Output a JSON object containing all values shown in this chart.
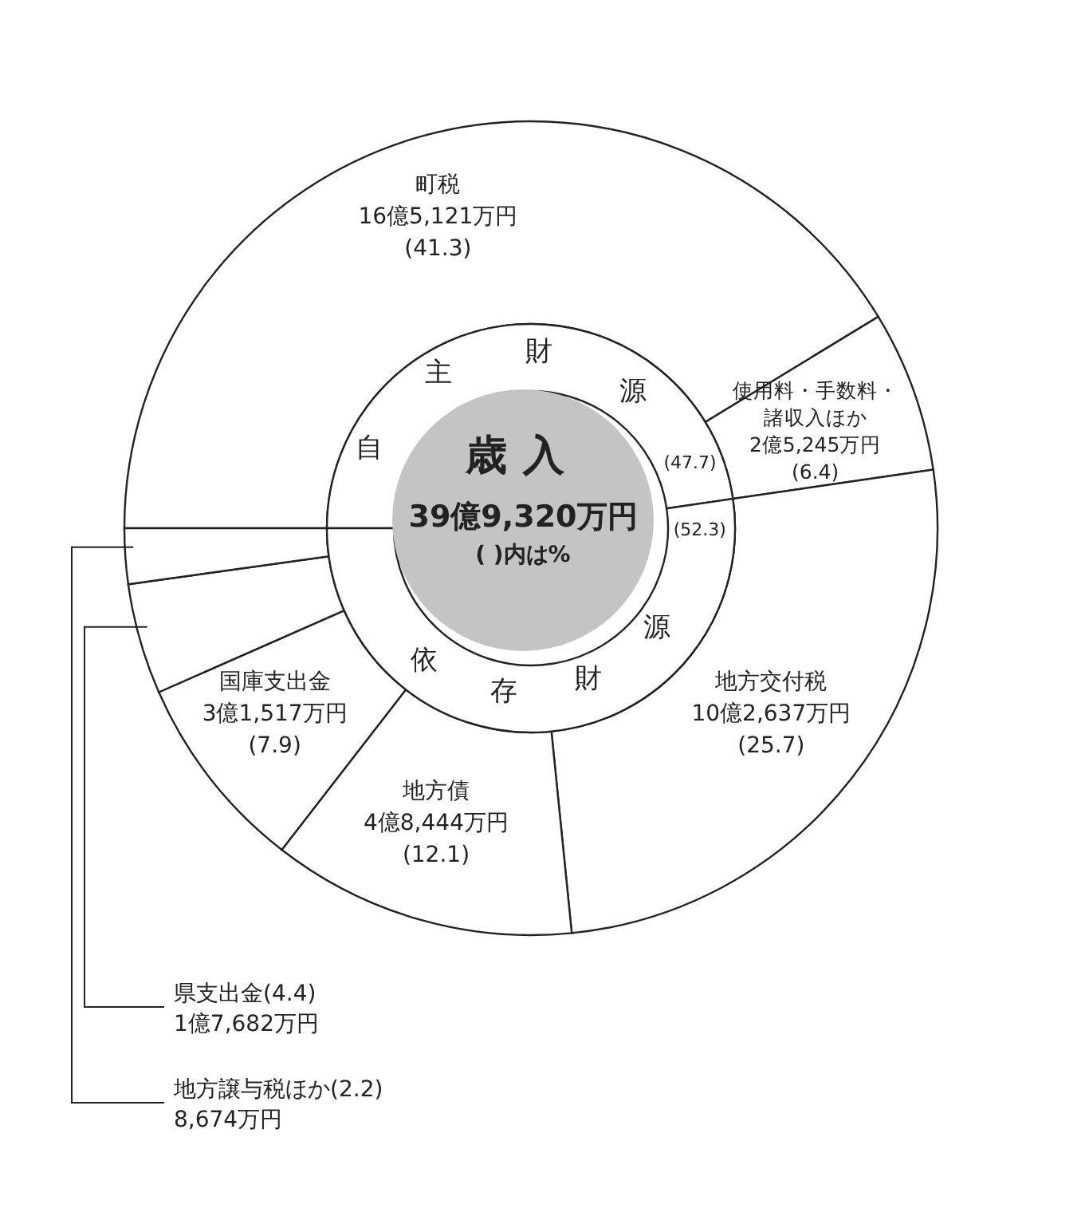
{
  "chart_data": [
    {
      "type": "donut",
      "categories": [
        "町税",
        "使用料・手数料・諸収入ほか",
        "地方交付税",
        "地方債",
        "国庫支出金",
        "県支出金",
        "地方譲与税ほか"
      ],
      "values": [
        41.3,
        6.4,
        25.7,
        12.1,
        7.9,
        4.4,
        2.2
      ],
      "value_labels": [
        "(41.3)",
        "(6.4)",
        "(25.7)",
        "(12.1)",
        "(7.9)",
        "(4.4)",
        "(2.2)"
      ],
      "colors": [
        "#ffffff",
        "#ffffff",
        "#ffffff",
        "#ffffff",
        "#ffffff",
        "#ffffff",
        "#ffffff"
      ],
      "data_labels": true,
      "annotations": [
        {
          "text": "16億5,121万円",
          "x": "町税"
        },
        {
          "text": "2億5,245万円",
          "x": "使用料・手数料・諸収入ほか"
        },
        {
          "text": "10億2,637万円",
          "x": "地方交付税"
        },
        {
          "text": "4億8,444万円",
          "x": "地方債"
        },
        {
          "text": "3億1,517万円",
          "x": "国庫支出金"
        },
        {
          "text": "1億7,682万円",
          "x": "県支出金"
        },
        {
          "text": "8,674万円",
          "x": "地方譲与税ほか"
        }
      ]
    },
    {
      "type": "donut",
      "title": "歳入",
      "subtitle": "39億9,320万円",
      "annotations": [
        "( )内は%"
      ],
      "categories": [
        "自主財源",
        "依存財源"
      ],
      "values": [
        47.7,
        52.3
      ],
      "value_labels": [
        "(47.7)",
        "(52.3)"
      ],
      "colors": [
        "#ffffff",
        "#ffffff"
      ],
      "data_labels": true
    }
  ]
}
